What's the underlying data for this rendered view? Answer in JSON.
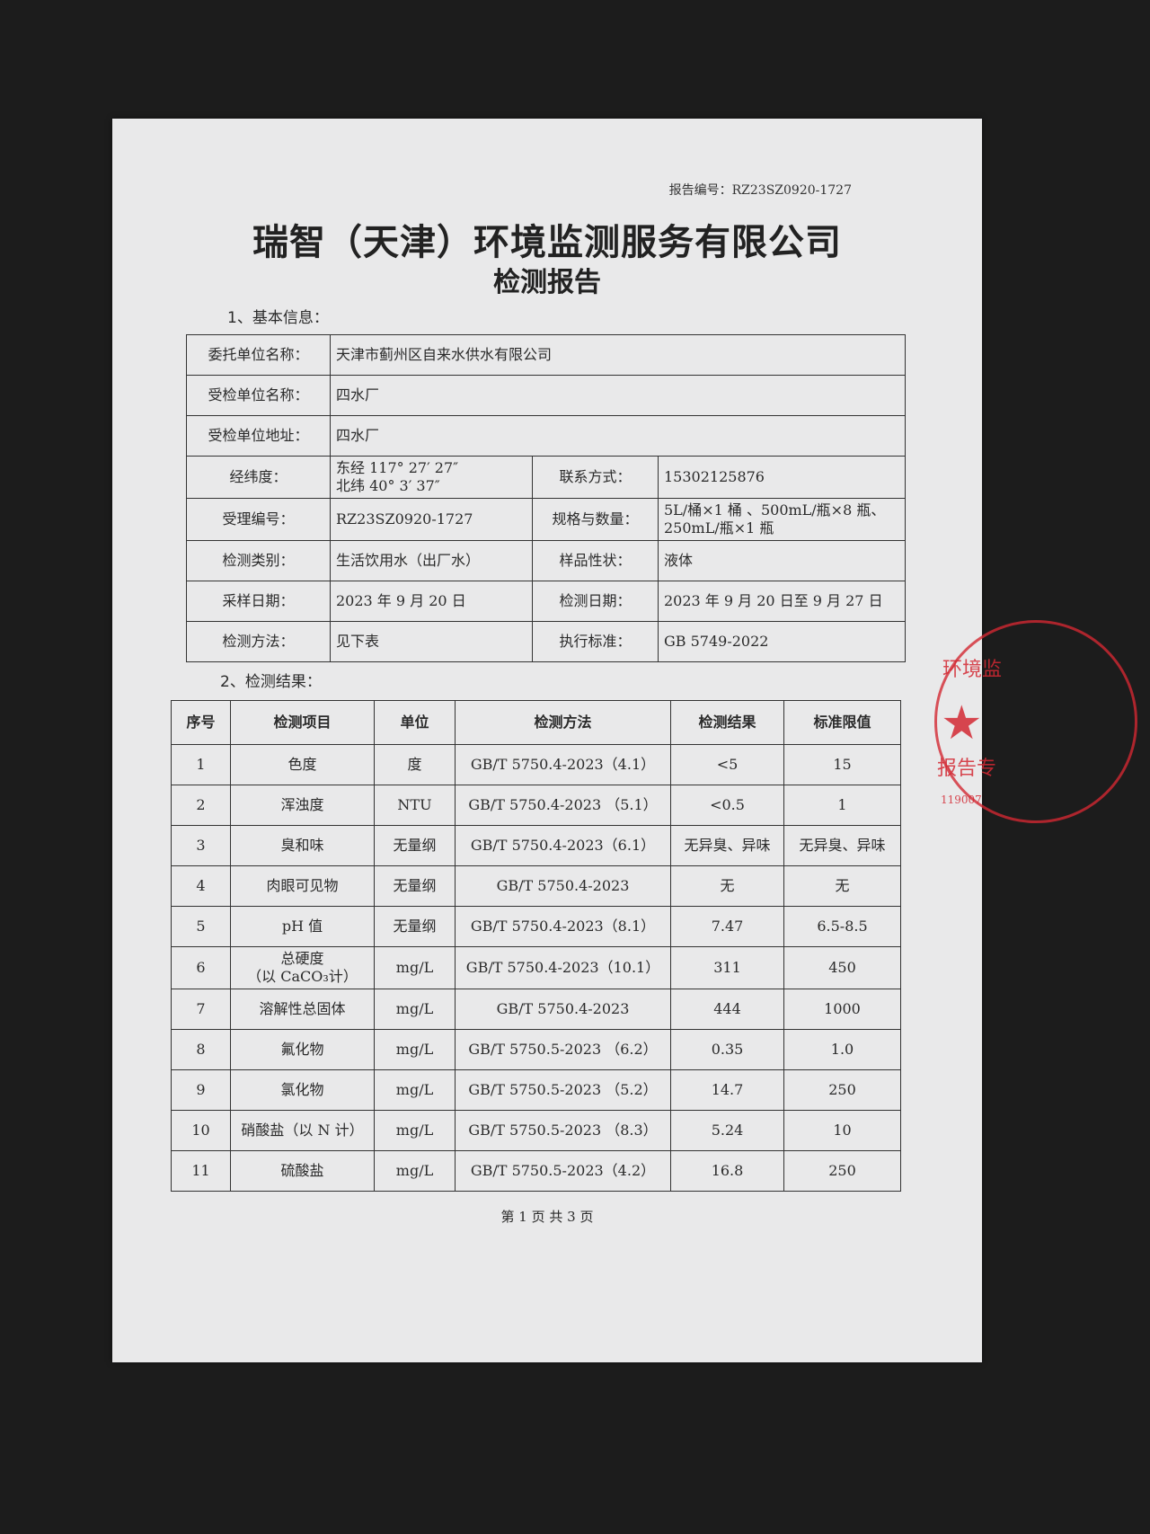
{
  "report_no": "报告编号：RZ23SZ0920-1727",
  "title": "瑞智（天津）环境监测服务有限公司",
  "subtitle": "检测报告",
  "section1": "1、基本信息：",
  "basic_info": {
    "client_label": "委托单位名称：",
    "client": "天津市蓟州区自来水供水有限公司",
    "inspected_label": "受检单位名称：",
    "inspected": "四水厂",
    "address_label": "受检单位地址：",
    "address": "四水厂",
    "coords_label": "经纬度：",
    "lon": "东经 117° 27′ 27″",
    "lat": "北纬 40° 3′ 37″",
    "contact_label": "联系方式：",
    "contact": "15302125876",
    "accept_no_label": "受理编号：",
    "accept_no": "RZ23SZ0920-1727",
    "spec_label": "规格与数量：",
    "spec1": "5L/桶×1 桶 、500mL/瓶×8 瓶、",
    "spec2": "250mL/瓶×1 瓶",
    "type_label": "检测类别：",
    "type": "生活饮用水（出厂水）",
    "sample_label": "样品性状：",
    "sample": "液体",
    "sampling_date_label": "采样日期：",
    "sampling_date": "2023 年 9 月 20 日",
    "test_date_label": "检测日期：",
    "test_date": "2023 年 9 月 20 日至 9 月 27 日",
    "method_label": "检测方法：",
    "method": "见下表",
    "standard_label": "执行标准：",
    "standard": "GB 5749-2022"
  },
  "section2": "2、检测结果：",
  "results": {
    "headers": [
      "序号",
      "检测项目",
      "单位",
      "检测方法",
      "检测结果",
      "标准限值"
    ],
    "rows": [
      [
        "1",
        "色度",
        "度",
        "GB/T 5750.4-2023（4.1）",
        "<5",
        "15"
      ],
      [
        "2",
        "浑浊度",
        "NTU",
        "GB/T 5750.4-2023 （5.1）",
        "<0.5",
        "1"
      ],
      [
        "3",
        "臭和味",
        "无量纲",
        "GB/T 5750.4-2023（6.1）",
        "无异臭、异味",
        "无异臭、异味"
      ],
      [
        "4",
        "肉眼可见物",
        "无量纲",
        "GB/T 5750.4-2023",
        "无",
        "无"
      ],
      [
        "5",
        "pH 值",
        "无量纲",
        "GB/T 5750.4-2023（8.1）",
        "7.47",
        "6.5-8.5"
      ],
      [
        "6",
        "总硬度\n（以 CaCO₃计）",
        "mg/L",
        "GB/T 5750.4-2023（10.1）",
        "311",
        "450"
      ],
      [
        "7",
        "溶解性总固体",
        "mg/L",
        "GB/T 5750.4-2023",
        "444",
        "1000"
      ],
      [
        "8",
        "氟化物",
        "mg/L",
        "GB/T 5750.5-2023 （6.2）",
        "0.35",
        "1.0"
      ],
      [
        "9",
        "氯化物",
        "mg/L",
        "GB/T 5750.5-2023 （5.2）",
        "14.7",
        "250"
      ],
      [
        "10",
        "硝酸盐（以 N 计）",
        "mg/L",
        "GB/T 5750.5-2023 （8.3）",
        "5.24",
        "10"
      ],
      [
        "11",
        "硫酸盐",
        "mg/L",
        "GB/T 5750.5-2023（4.2）",
        "16.8",
        "250"
      ]
    ]
  },
  "footer": "第 1 页 共 3 页",
  "stamp": {
    "top": "环境监",
    "bottom": "报告专",
    "code": "119007",
    "color": "#d22832"
  }
}
